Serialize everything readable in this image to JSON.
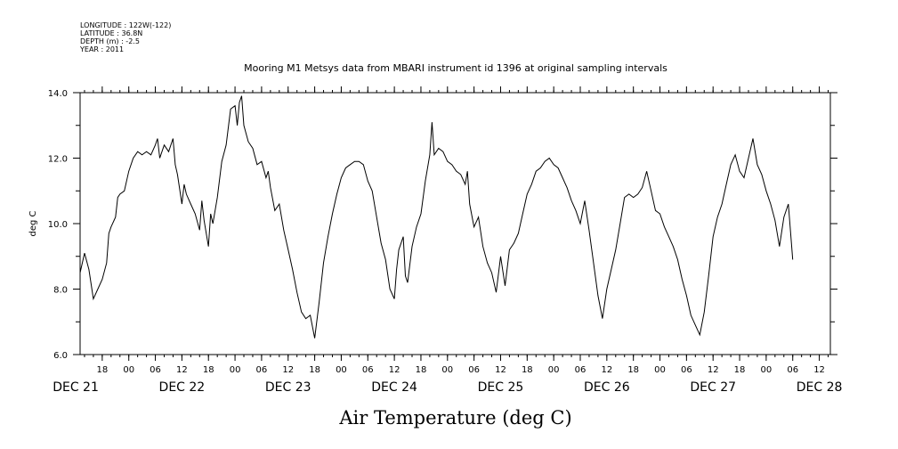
{
  "header": {
    "lines": [
      "LONGITUDE : 122W(-122)",
      "LATITUDE : 36.8N",
      "DEPTH (m) : -2.5",
      "YEAR : 2011"
    ]
  },
  "chart_data": {
    "type": "line",
    "title": "Mooring M1 Metsys data from MBARI instrument id 1396 at original sampling intervals",
    "xlabel": "Air Temperature (deg C)",
    "ylabel": "deg C",
    "ylim": [
      6.0,
      14.0
    ],
    "y_ticks": [
      "6.0",
      "8.0",
      "10.0",
      "12.0",
      "14.0"
    ],
    "xlim_hours": [
      13,
      182.5
    ],
    "x_hour_ticks": [
      {
        "h": 18,
        "label": "18"
      },
      {
        "h": 24,
        "label": "00"
      },
      {
        "h": 30,
        "label": "06"
      },
      {
        "h": 36,
        "label": "12"
      },
      {
        "h": 42,
        "label": "18"
      },
      {
        "h": 48,
        "label": "00"
      },
      {
        "h": 54,
        "label": "06"
      },
      {
        "h": 60,
        "label": "12"
      },
      {
        "h": 66,
        "label": "18"
      },
      {
        "h": 72,
        "label": "00"
      },
      {
        "h": 78,
        "label": "06"
      },
      {
        "h": 84,
        "label": "12"
      },
      {
        "h": 90,
        "label": "18"
      },
      {
        "h": 96,
        "label": "00"
      },
      {
        "h": 102,
        "label": "06"
      },
      {
        "h": 108,
        "label": "12"
      },
      {
        "h": 114,
        "label": "18"
      },
      {
        "h": 120,
        "label": "00"
      },
      {
        "h": 126,
        "label": "06"
      },
      {
        "h": 132,
        "label": "12"
      },
      {
        "h": 138,
        "label": "18"
      },
      {
        "h": 144,
        "label": "00"
      },
      {
        "h": 150,
        "label": "06"
      },
      {
        "h": 156,
        "label": "12"
      },
      {
        "h": 162,
        "label": "18"
      },
      {
        "h": 168,
        "label": "00"
      },
      {
        "h": 174,
        "label": "06"
      },
      {
        "h": 180,
        "label": "12"
      }
    ],
    "day_labels": [
      {
        "h": 12,
        "label": "DEC 21"
      },
      {
        "h": 36,
        "label": "DEC 22"
      },
      {
        "h": 60,
        "label": "DEC 23"
      },
      {
        "h": 84,
        "label": "DEC 24"
      },
      {
        "h": 108,
        "label": "DEC 25"
      },
      {
        "h": 132,
        "label": "DEC 26"
      },
      {
        "h": 156,
        "label": "DEC 27"
      },
      {
        "h": 180,
        "label": "DEC 28"
      }
    ],
    "series": [
      {
        "points": [
          [
            13.0,
            8.5
          ],
          [
            14.0,
            9.1
          ],
          [
            15.0,
            8.6
          ],
          [
            16.0,
            7.7
          ],
          [
            17.0,
            8.0
          ],
          [
            18.0,
            8.3
          ],
          [
            19.0,
            8.8
          ],
          [
            19.5,
            9.7
          ],
          [
            20.0,
            9.9
          ],
          [
            21.0,
            10.2
          ],
          [
            21.5,
            10.8
          ],
          [
            22.0,
            10.9
          ],
          [
            23.0,
            11.0
          ],
          [
            24.0,
            11.6
          ],
          [
            25.0,
            12.0
          ],
          [
            26.0,
            12.2
          ],
          [
            27.0,
            12.1
          ],
          [
            28.0,
            12.2
          ],
          [
            29.0,
            12.1
          ],
          [
            30.0,
            12.4
          ],
          [
            30.5,
            12.6
          ],
          [
            31.0,
            12.0
          ],
          [
            32.0,
            12.4
          ],
          [
            33.0,
            12.2
          ],
          [
            34.0,
            12.6
          ],
          [
            34.5,
            11.8
          ],
          [
            35.0,
            11.5
          ],
          [
            36.0,
            10.6
          ],
          [
            36.5,
            11.2
          ],
          [
            37.0,
            10.9
          ],
          [
            38.0,
            10.6
          ],
          [
            39.0,
            10.3
          ],
          [
            40.0,
            9.8
          ],
          [
            40.5,
            10.7
          ],
          [
            41.0,
            10.1
          ],
          [
            42.0,
            9.3
          ],
          [
            42.5,
            10.3
          ],
          [
            43.0,
            10.0
          ],
          [
            44.0,
            10.8
          ],
          [
            45.0,
            11.9
          ],
          [
            46.0,
            12.4
          ],
          [
            47.0,
            13.5
          ],
          [
            48.0,
            13.6
          ],
          [
            48.5,
            13.0
          ],
          [
            49.0,
            13.7
          ],
          [
            49.5,
            13.9
          ],
          [
            50.0,
            13.0
          ],
          [
            51.0,
            12.5
          ],
          [
            52.0,
            12.3
          ],
          [
            53.0,
            11.8
          ],
          [
            54.0,
            11.9
          ],
          [
            55.0,
            11.4
          ],
          [
            55.5,
            11.6
          ],
          [
            56.0,
            11.1
          ],
          [
            57.0,
            10.4
          ],
          [
            58.0,
            10.6
          ],
          [
            59.0,
            9.8
          ],
          [
            60.0,
            9.2
          ],
          [
            61.0,
            8.6
          ],
          [
            62.0,
            7.9
          ],
          [
            63.0,
            7.3
          ],
          [
            64.0,
            7.1
          ],
          [
            65.0,
            7.2
          ],
          [
            66.0,
            6.5
          ],
          [
            67.0,
            7.6
          ],
          [
            68.0,
            8.8
          ],
          [
            69.0,
            9.6
          ],
          [
            70.0,
            10.3
          ],
          [
            71.0,
            10.9
          ],
          [
            72.0,
            11.4
          ],
          [
            73.0,
            11.7
          ],
          [
            74.0,
            11.8
          ],
          [
            75.0,
            11.9
          ],
          [
            76.0,
            11.9
          ],
          [
            77.0,
            11.8
          ],
          [
            78.0,
            11.3
          ],
          [
            79.0,
            11.0
          ],
          [
            80.0,
            10.2
          ],
          [
            81.0,
            9.4
          ],
          [
            82.0,
            8.9
          ],
          [
            83.0,
            8.0
          ],
          [
            84.0,
            7.7
          ],
          [
            84.5,
            8.6
          ],
          [
            85.0,
            9.2
          ],
          [
            86.0,
            9.6
          ],
          [
            86.5,
            8.4
          ],
          [
            87.0,
            8.2
          ],
          [
            88.0,
            9.3
          ],
          [
            89.0,
            9.9
          ],
          [
            90.0,
            10.3
          ],
          [
            91.0,
            11.3
          ],
          [
            92.0,
            12.1
          ],
          [
            92.5,
            13.1
          ],
          [
            93.0,
            12.1
          ],
          [
            94.0,
            12.3
          ],
          [
            95.0,
            12.2
          ],
          [
            96.0,
            11.9
          ],
          [
            97.0,
            11.8
          ],
          [
            98.0,
            11.6
          ],
          [
            99.0,
            11.5
          ],
          [
            100.0,
            11.2
          ],
          [
            100.5,
            11.6
          ],
          [
            101.0,
            10.6
          ],
          [
            102.0,
            9.9
          ],
          [
            103.0,
            10.2
          ],
          [
            104.0,
            9.3
          ],
          [
            105.0,
            8.8
          ],
          [
            106.0,
            8.5
          ],
          [
            107.0,
            7.9
          ],
          [
            108.0,
            9.0
          ],
          [
            109.0,
            8.1
          ],
          [
            110.0,
            9.2
          ],
          [
            111.0,
            9.4
          ],
          [
            112.0,
            9.7
          ],
          [
            113.0,
            10.3
          ],
          [
            114.0,
            10.9
          ],
          [
            115.0,
            11.2
          ],
          [
            116.0,
            11.6
          ],
          [
            117.0,
            11.7
          ],
          [
            118.0,
            11.9
          ],
          [
            119.0,
            12.0
          ],
          [
            120.0,
            11.8
          ],
          [
            121.0,
            11.7
          ],
          [
            122.0,
            11.4
          ],
          [
            123.0,
            11.1
          ],
          [
            124.0,
            10.7
          ],
          [
            125.0,
            10.4
          ],
          [
            126.0,
            10.0
          ],
          [
            127.0,
            10.7
          ],
          [
            128.0,
            9.8
          ],
          [
            129.0,
            8.8
          ],
          [
            130.0,
            7.8
          ],
          [
            131.0,
            7.1
          ],
          [
            132.0,
            8.0
          ],
          [
            133.0,
            8.6
          ],
          [
            134.0,
            9.2
          ],
          [
            135.0,
            10.0
          ],
          [
            136.0,
            10.8
          ],
          [
            137.0,
            10.9
          ],
          [
            138.0,
            10.8
          ],
          [
            139.0,
            10.9
          ],
          [
            140.0,
            11.1
          ],
          [
            141.0,
            11.6
          ],
          [
            142.0,
            11.0
          ],
          [
            143.0,
            10.4
          ],
          [
            144.0,
            10.3
          ],
          [
            145.0,
            9.9
          ],
          [
            146.0,
            9.6
          ],
          [
            147.0,
            9.3
          ],
          [
            148.0,
            8.9
          ],
          [
            149.0,
            8.3
          ],
          [
            150.0,
            7.8
          ],
          [
            151.0,
            7.2
          ],
          [
            152.0,
            6.9
          ],
          [
            153.0,
            6.6
          ],
          [
            154.0,
            7.3
          ],
          [
            155.0,
            8.4
          ],
          [
            156.0,
            9.6
          ],
          [
            157.0,
            10.2
          ],
          [
            158.0,
            10.6
          ],
          [
            159.0,
            11.2
          ],
          [
            160.0,
            11.8
          ],
          [
            161.0,
            12.1
          ],
          [
            162.0,
            11.6
          ],
          [
            163.0,
            11.4
          ],
          [
            164.0,
            12.0
          ],
          [
            165.0,
            12.6
          ],
          [
            166.0,
            11.8
          ],
          [
            167.0,
            11.5
          ],
          [
            168.0,
            11.0
          ],
          [
            169.0,
            10.6
          ],
          [
            170.0,
            10.1
          ],
          [
            171.0,
            9.3
          ],
          [
            172.0,
            10.2
          ],
          [
            173.0,
            10.6
          ],
          [
            174.0,
            8.9
          ]
        ]
      }
    ]
  }
}
